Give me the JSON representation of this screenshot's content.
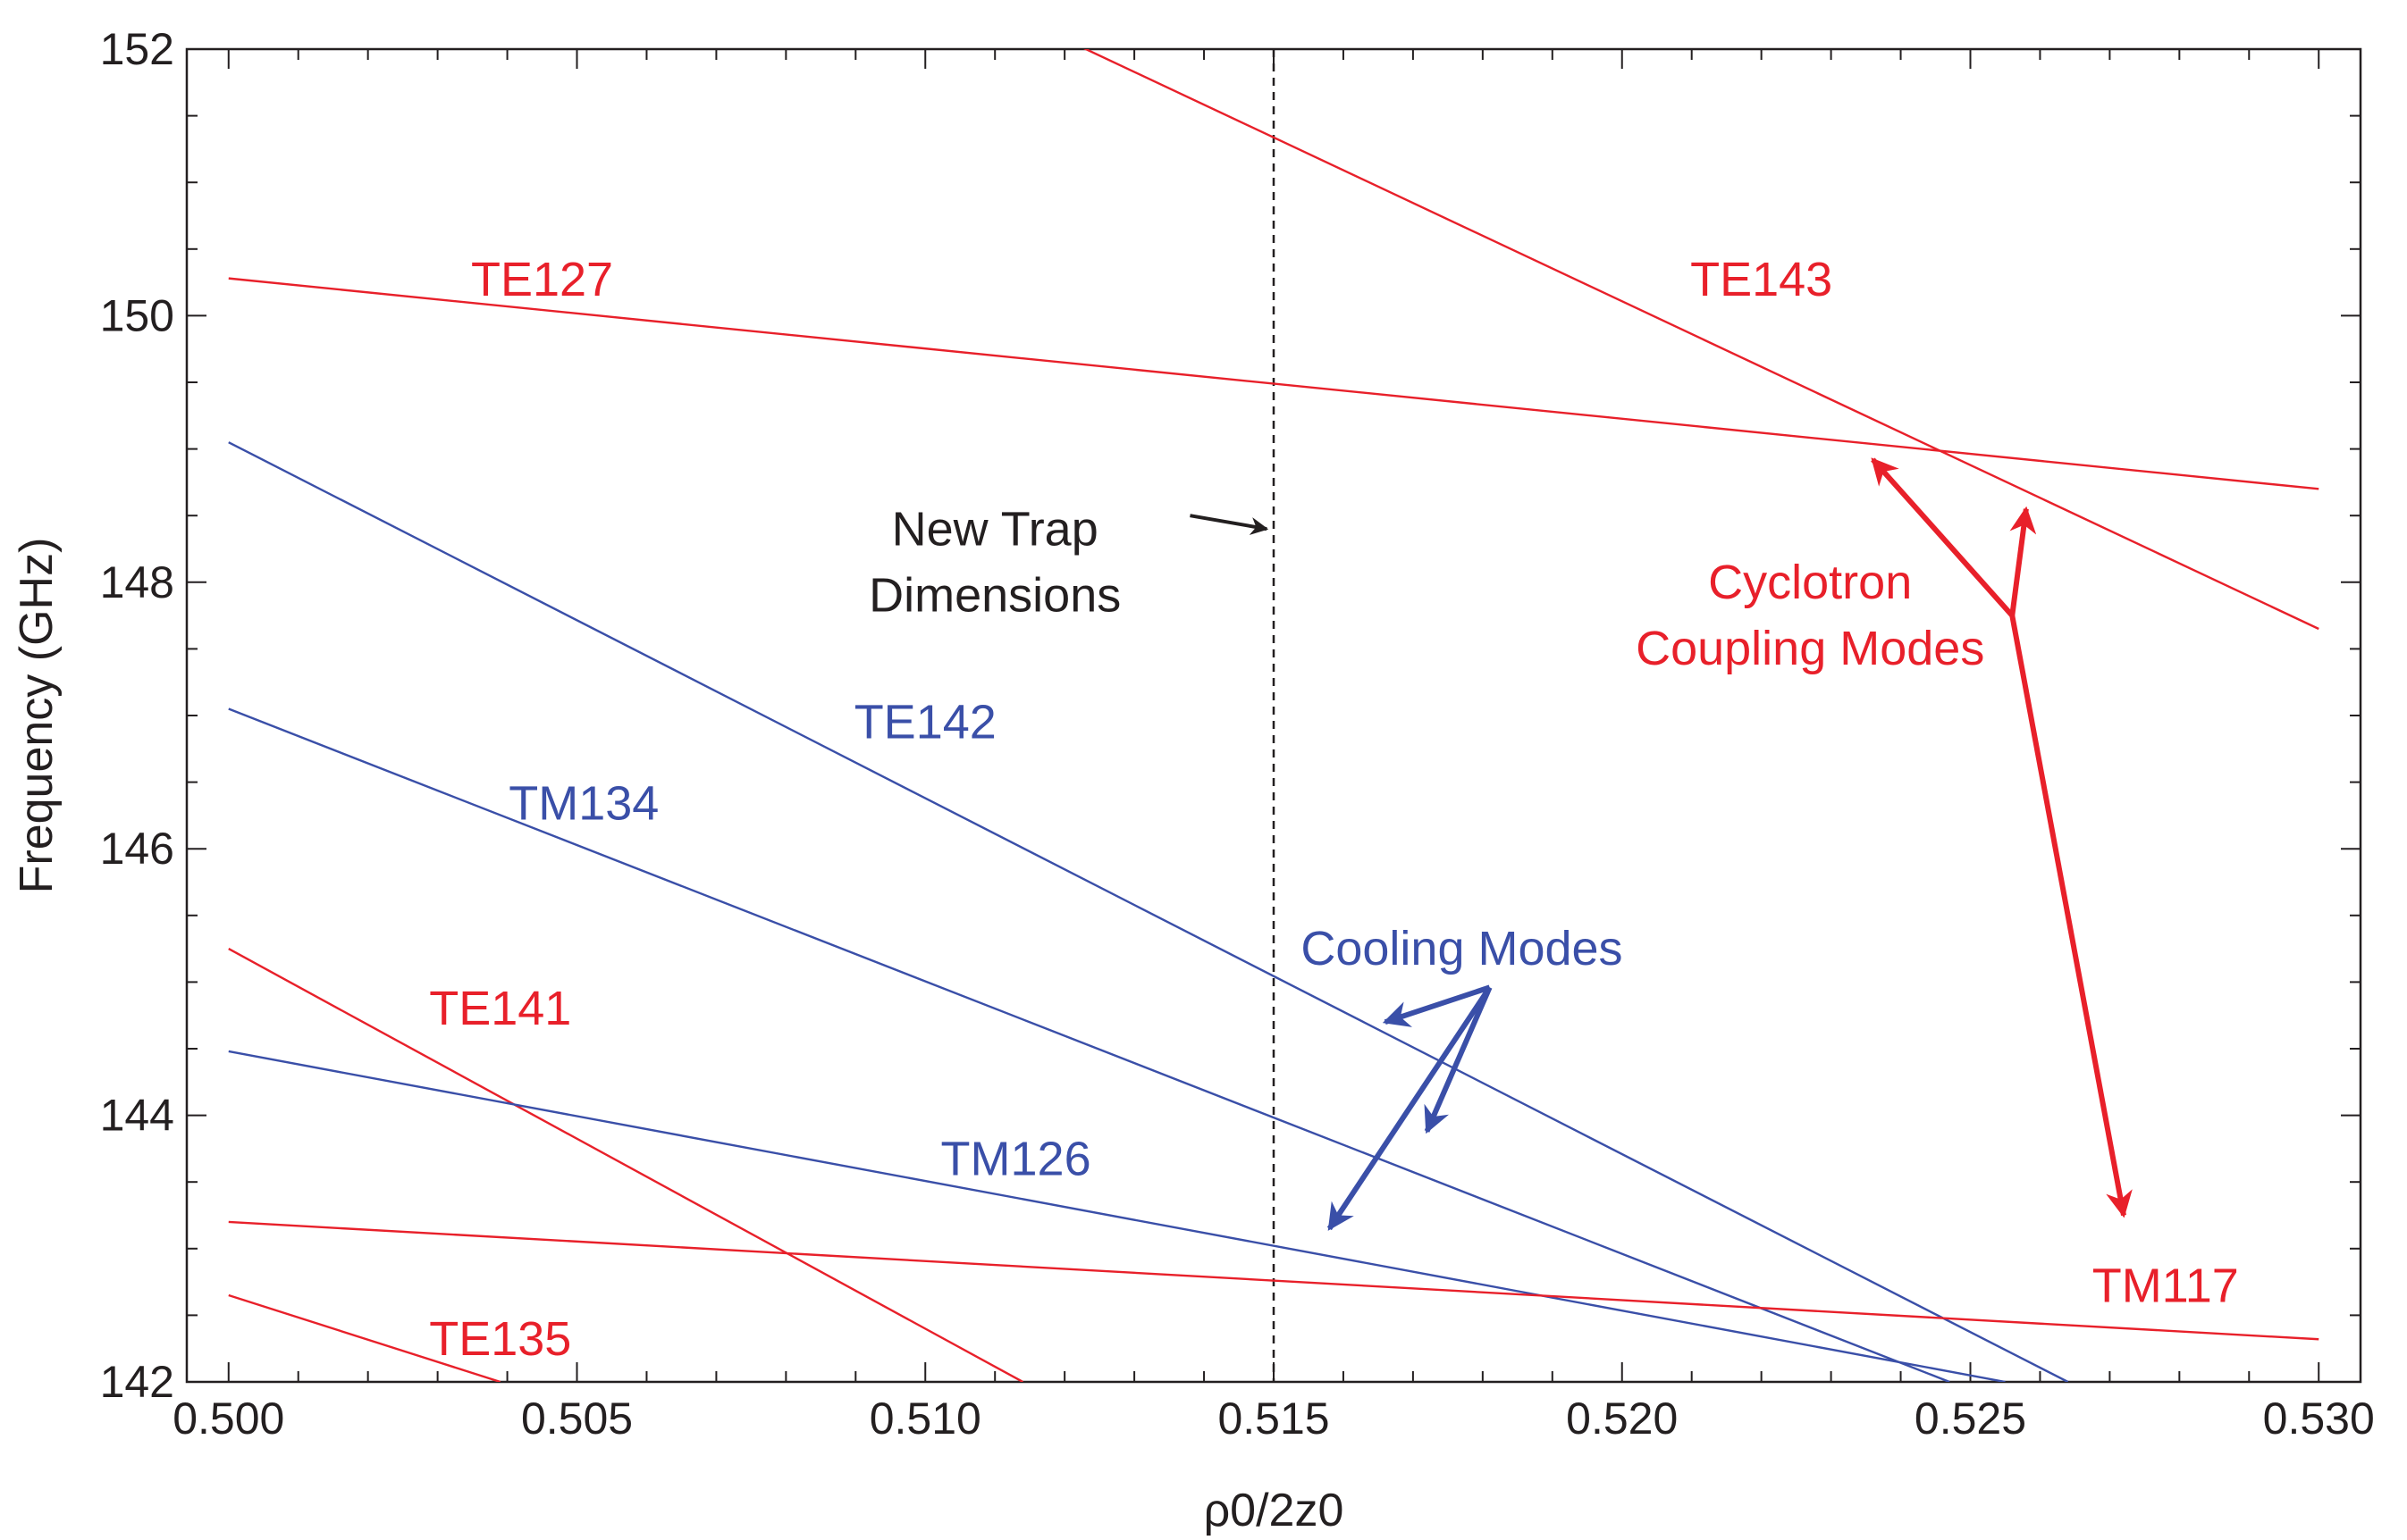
{
  "chart_data": {
    "type": "line",
    "title": "",
    "xlabel": "ρ0/2z0",
    "ylabel": "Frequency (GHz)",
    "xlim": [
      0.4994,
      0.5306
    ],
    "ylim": [
      142,
      152
    ],
    "xticks": [
      0.5,
      0.505,
      0.51,
      0.515,
      0.52,
      0.525,
      0.53
    ],
    "xtick_labels": [
      "0.500",
      "0.505",
      "0.510",
      "0.515",
      "0.520",
      "0.525",
      "0.530"
    ],
    "yticks": [
      142,
      144,
      146,
      148,
      150,
      152
    ],
    "ytick_labels": [
      "142",
      "144",
      "146",
      "148",
      "150",
      "152"
    ],
    "colors": {
      "red": "#e8202a",
      "blue": "#3a4fa8",
      "axis": "#231f20"
    },
    "series": [
      {
        "name": "TE143",
        "color": "red",
        "x": [
          0.5121,
          0.53
        ],
        "y": [
          152.05,
          147.65
        ]
      },
      {
        "name": "TE127",
        "color": "red",
        "x": [
          0.5,
          0.53
        ],
        "y": [
          150.28,
          148.7
        ]
      },
      {
        "name": "TE142",
        "color": "blue",
        "x": [
          0.5,
          0.5264
        ],
        "y": [
          149.05,
          142.0
        ]
      },
      {
        "name": "TM134",
        "color": "blue",
        "x": [
          0.5,
          0.5247
        ],
        "y": [
          147.05,
          142.0
        ]
      },
      {
        "name": "TE141",
        "color": "red",
        "x": [
          0.5,
          0.5114
        ],
        "y": [
          145.25,
          142.0
        ]
      },
      {
        "name": "TM126",
        "color": "blue",
        "x": [
          0.5,
          0.5255
        ],
        "y": [
          144.48,
          142.0
        ]
      },
      {
        "name": "TM117",
        "color": "red",
        "x": [
          0.5,
          0.53
        ],
        "y": [
          143.2,
          142.32
        ]
      },
      {
        "name": "TE135",
        "color": "red",
        "x": [
          0.5,
          0.5039
        ],
        "y": [
          142.65,
          142.0
        ]
      }
    ],
    "reference_line": {
      "x": 0.515,
      "style": "dashed"
    },
    "series_labels": [
      {
        "text": "TE127",
        "color": "red",
        "x": 0.5045,
        "y": 150.15
      },
      {
        "text": "TE143",
        "color": "red",
        "x": 0.522,
        "y": 150.15
      },
      {
        "text": "TE142",
        "color": "blue",
        "x": 0.51,
        "y": 146.83
      },
      {
        "text": "TM134",
        "color": "blue",
        "x": 0.5051,
        "y": 146.22
      },
      {
        "text": "TE141",
        "color": "red",
        "x": 0.5039,
        "y": 144.68
      },
      {
        "text": "TM126",
        "color": "blue",
        "x": 0.5113,
        "y": 143.55
      },
      {
        "text": "TM117",
        "color": "red",
        "x": 0.5278,
        "y": 142.6
      },
      {
        "text": "TE135",
        "color": "red",
        "x": 0.5039,
        "y": 142.2
      }
    ],
    "annotations": [
      {
        "lines": [
          "New Trap",
          "Dimensions"
        ],
        "color": "axis",
        "x": 0.511,
        "y": 148.15,
        "arrow": {
          "from": [
            0.5138,
            148.5
          ],
          "to": [
            0.5149,
            148.4
          ]
        }
      },
      {
        "lines": [
          "Cyclotron",
          "Coupling Modes"
        ],
        "color": "red",
        "x": 0.5227,
        "y": 147.75,
        "arrows": {
          "origin": [
            0.5256,
            147.75
          ],
          "targets": [
            [
              0.5236,
              148.92
            ],
            [
              0.5258,
              148.55
            ],
            [
              0.5272,
              143.25
            ]
          ]
        }
      },
      {
        "lines": [
          "Cooling Modes"
        ],
        "color": "blue",
        "x": 0.5177,
        "y": 145.25,
        "arrows": {
          "origin": [
            0.5181,
            144.96
          ],
          "targets": [
            [
              0.5166,
              144.7
            ],
            [
              0.5172,
              143.88
            ],
            [
              0.5158,
              143.15
            ]
          ]
        }
      }
    ]
  }
}
